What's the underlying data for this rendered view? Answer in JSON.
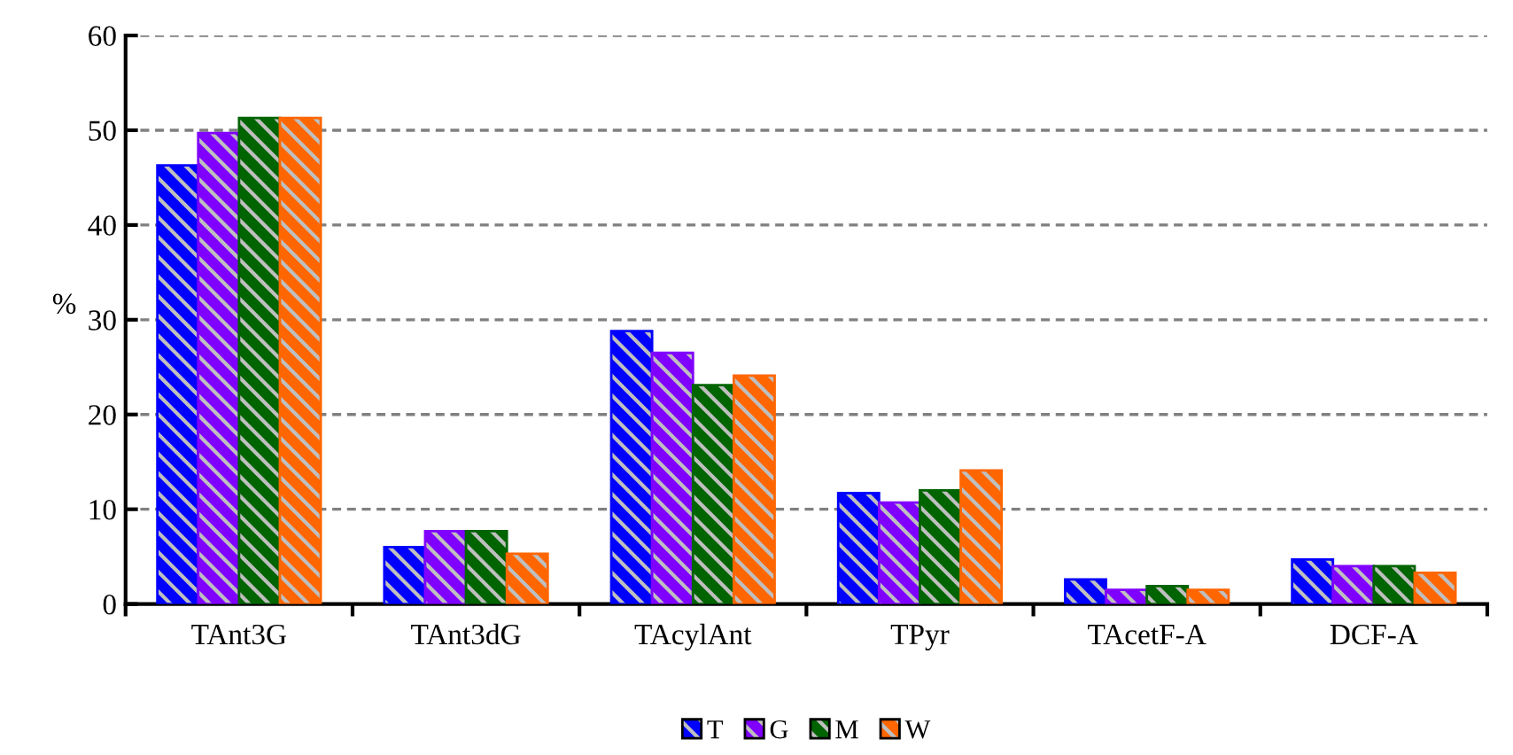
{
  "chart_data": {
    "type": "bar",
    "ylabel": "%",
    "categories": [
      "TAnt3G",
      "TAnt3dG",
      "TAcylAnt",
      "TPyr",
      "TAcetF-A",
      "DCF-A"
    ],
    "series": [
      {
        "name": "T",
        "color": "#0000ff",
        "values": [
          46.3,
          6.0,
          28.8,
          11.7,
          2.6,
          4.7
        ]
      },
      {
        "name": "G",
        "color": "#8000ff",
        "values": [
          49.7,
          7.7,
          26.5,
          10.7,
          1.5,
          4.0
        ]
      },
      {
        "name": "M",
        "color": "#006400",
        "values": [
          51.3,
          7.7,
          23.1,
          12.0,
          1.9,
          4.0
        ]
      },
      {
        "name": "W",
        "color": "#ff6600",
        "values": [
          51.3,
          5.3,
          24.1,
          14.1,
          1.5,
          3.3
        ]
      }
    ],
    "ylim": [
      0,
      60
    ],
    "yticks": [
      0,
      10,
      20,
      30,
      40,
      50,
      60
    ],
    "grid": "y",
    "legend": "bottom"
  }
}
